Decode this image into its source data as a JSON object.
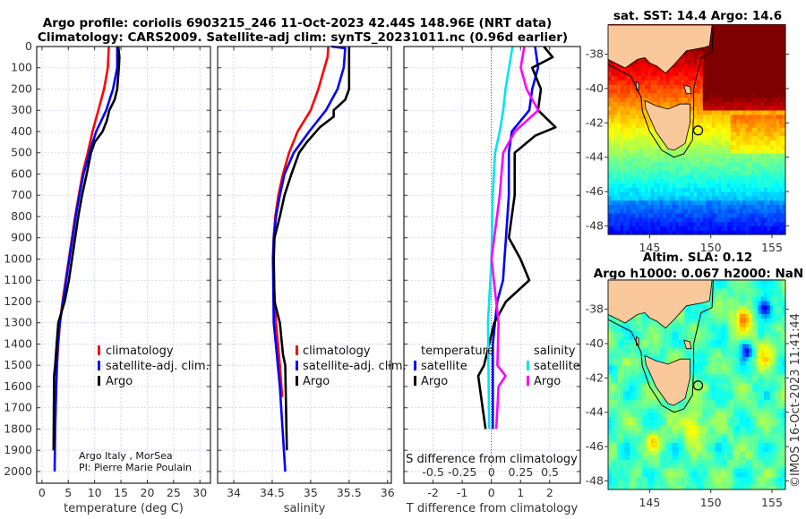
{
  "title_line1": "Argo profile: coriolis 6903215_246 11-Oct-2023 42.44S 148.96E (NRT data)",
  "title_line2": "Climatology: CARS2009. Satellite-adj clim: synTS_20231011.nc (0.96d earlier)",
  "credit": "©IMOS 16-Oct-2023 11:41:44",
  "colors": {
    "climatology": "#ff0000",
    "satellite": "#0000ff",
    "argo": "#000000",
    "s_satellite": "#00e5ee",
    "s_argo": "#ff00ff",
    "land": "#f9c99b"
  },
  "chart_data": [
    {
      "type": "line",
      "xlabel": "temperature (deg C)",
      "ylabel": "",
      "xlim": [
        -1,
        32
      ],
      "ylim": [
        0,
        2055
      ],
      "xticks": [
        0,
        5,
        10,
        15,
        20,
        25,
        30
      ],
      "yticks": [
        0,
        100,
        200,
        300,
        400,
        500,
        600,
        700,
        800,
        900,
        1000,
        1100,
        1200,
        1300,
        1400,
        1500,
        1600,
        1700,
        1800,
        1900,
        2000
      ],
      "grid": true,
      "legend": [
        "climatology",
        "satellite-adj. clim.",
        "Argo"
      ],
      "annotation": [
        "Argo Italy , MorSea",
        "PI: Pierre Marie Poulain"
      ],
      "series": [
        {
          "name": "climatology",
          "color": "#ff0000",
          "depth": [
            0,
            100,
            200,
            300,
            400,
            500,
            600,
            700,
            800,
            900,
            1000,
            1100,
            1200,
            1300,
            1400,
            1550
          ],
          "values": [
            12.7,
            12.5,
            11.8,
            10.7,
            9.6,
            8.7,
            7.7,
            7.0,
            6.3,
            5.7,
            5.1,
            4.5,
            3.9,
            3.4,
            3.1,
            2.7
          ]
        },
        {
          "name": "satellite-adj. clim.",
          "color": "#0000ff",
          "depth": [
            0,
            100,
            200,
            300,
            400,
            500,
            600,
            700,
            800,
            900,
            1000,
            1100,
            1200,
            1300,
            1400,
            1600,
            1800,
            2000
          ],
          "values": [
            14.3,
            14.3,
            13.5,
            12.2,
            10.3,
            9.0,
            7.9,
            7.1,
            6.4,
            5.8,
            5.2,
            4.6,
            4.0,
            3.4,
            3.0,
            2.7,
            2.5,
            2.4
          ]
        },
        {
          "name": "Argo",
          "color": "#000000",
          "depth": [
            0,
            50,
            100,
            200,
            250,
            300,
            350,
            400,
            450,
            500,
            600,
            700,
            800,
            900,
            1000,
            1100,
            1200,
            1300,
            1400,
            1500,
            1550,
            1900
          ],
          "values": [
            14.5,
            14.7,
            14.6,
            14.3,
            13.8,
            12.8,
            12.3,
            11.5,
            10.0,
            9.3,
            8.5,
            7.6,
            6.9,
            6.3,
            5.7,
            5.1,
            4.3,
            3.1,
            2.8,
            2.5,
            2.3,
            2.2
          ]
        }
      ]
    },
    {
      "type": "line",
      "xlabel": "salinity",
      "xlim": [
        33.79,
        36.05
      ],
      "ylim": [
        0,
        2055
      ],
      "xticks": [
        34,
        34.5,
        35,
        35.5,
        36
      ],
      "xticklabels": [
        "34",
        "34.5",
        "35",
        "35.5",
        "36"
      ],
      "grid": true,
      "legend": [
        "climatology",
        "satellite-adj. clim.",
        "Argo"
      ],
      "series": [
        {
          "name": "climatology",
          "color": "#ff0000",
          "depth": [
            0,
            50,
            100,
            200,
            300,
            400,
            500,
            600,
            700,
            800,
            900,
            1000,
            1100,
            1300,
            1500,
            1650
          ],
          "values": [
            35.23,
            35.22,
            35.18,
            35.1,
            35.0,
            34.83,
            34.72,
            34.64,
            34.58,
            34.54,
            34.52,
            34.51,
            34.52,
            34.55,
            34.6,
            34.63
          ]
        },
        {
          "name": "satellite-adj. clim.",
          "color": "#0000ff",
          "depth": [
            0,
            8,
            100,
            200,
            300,
            400,
            500,
            600,
            700,
            800,
            900,
            1000,
            1300,
            1600,
            2000
          ],
          "values": [
            35.27,
            35.45,
            35.43,
            35.35,
            35.2,
            34.98,
            34.78,
            34.66,
            34.6,
            34.55,
            34.52,
            34.51,
            34.52,
            34.6,
            34.67
          ]
        },
        {
          "name": "Argo",
          "color": "#000000",
          "depth": [
            0,
            100,
            200,
            250,
            300,
            330,
            380,
            450,
            500,
            600,
            700,
            800,
            900,
            1000,
            1200,
            1300,
            1450,
            1500,
            1900
          ],
          "values": [
            35.5,
            35.5,
            35.5,
            35.45,
            35.3,
            35.3,
            35.12,
            34.95,
            34.85,
            34.75,
            34.66,
            34.6,
            34.53,
            34.52,
            34.53,
            34.6,
            34.64,
            34.67,
            34.69
          ]
        }
      ]
    },
    {
      "type": "line",
      "xlabel": "T difference from climatology",
      "x2label": "S difference from climatology",
      "xlim": [
        -3.0,
        3.05
      ],
      "ylim": [
        0,
        2055
      ],
      "xticks": [
        -2,
        -1,
        0,
        1,
        2
      ],
      "x2lim": [
        -0.75,
        0.76
      ],
      "x2ticks": [
        -0.5,
        -0.25,
        0,
        0.25,
        0.5
      ],
      "x2ticklabels": [
        "-0.5",
        "-0.25",
        "0",
        "0.25",
        "0.5"
      ],
      "grid": true,
      "legend_t_title": "temperature",
      "legend_s_title": "salinity",
      "legend_t": [
        "satellite",
        "Argo"
      ],
      "legend_s": [
        "satellite",
        "Argo"
      ],
      "series": [
        {
          "name": "T satellite",
          "axis": "T",
          "color": "#0000ff",
          "depth": [
            0,
            100,
            200,
            300,
            400,
            500,
            700,
            900,
            1000,
            1100,
            1200,
            1400,
            1800
          ],
          "values": [
            1.5,
            1.6,
            1.4,
            1.3,
            0.7,
            0.6,
            0.6,
            0.5,
            0.45,
            0.4,
            0.2,
            0.05,
            0.05
          ]
        },
        {
          "name": "T Argo",
          "axis": "T",
          "color": "#000000",
          "depth": [
            0,
            50,
            100,
            200,
            300,
            380,
            420,
            500,
            700,
            900,
            1000,
            1100,
            1200,
            1300,
            1500,
            1550,
            1700,
            1800
          ],
          "values": [
            1.8,
            2.1,
            1.4,
            1.7,
            1.6,
            2.2,
            1.5,
            0.8,
            0.8,
            0.6,
            1.0,
            1.3,
            0.5,
            0.1,
            -0.25,
            -0.45,
            -0.3,
            -0.2
          ]
        },
        {
          "name": "S satellite",
          "axis": "S",
          "color": "#00e5ee",
          "depth": [
            0,
            100,
            200,
            300,
            400,
            500,
            700,
            1000,
            1300,
            1800
          ],
          "values": [
            0.18,
            0.15,
            0.12,
            0.1,
            0.07,
            0.03,
            0.01,
            0.0,
            -0.03,
            -0.02
          ]
        },
        {
          "name": "S Argo",
          "axis": "S",
          "color": "#ff00ff",
          "depth": [
            0,
            100,
            200,
            300,
            350,
            400,
            500,
            700,
            1000,
            1300,
            1500,
            1550,
            1600,
            1800
          ],
          "values": [
            0.28,
            0.25,
            0.3,
            0.4,
            0.3,
            0.2,
            0.1,
            0.07,
            0.0,
            0.06,
            0.05,
            0.12,
            0.06,
            0.04
          ]
        }
      ]
    },
    {
      "type": "heatmap",
      "title": "sat. SST: 14.4 Argo: 14.6",
      "field": "sst",
      "lonlim": [
        141.6,
        156.1
      ],
      "latlim": [
        -48.5,
        -36.3
      ],
      "xticks": [
        145,
        150,
        155
      ],
      "yticks": [
        -38,
        -40,
        -42,
        -44,
        -46,
        -48
      ],
      "marker": {
        "lon": 148.96,
        "lat": -42.44
      }
    },
    {
      "type": "heatmap",
      "title_line1": "Altim. SLA: 0.12",
      "title_line2": "Argo h1000: 0.067 h2000: NaN",
      "field": "sla",
      "lonlim": [
        141.6,
        156.1
      ],
      "latlim": [
        -48.5,
        -36.3
      ],
      "xticks": [
        145,
        150,
        155
      ],
      "yticks": [
        -38,
        -40,
        -42,
        -44,
        -46,
        -48
      ],
      "marker": {
        "lon": 148.96,
        "lat": -42.44
      }
    }
  ],
  "coast": {
    "mainland": [
      [
        141.6,
        -36.3
      ],
      [
        141.6,
        -38.3
      ],
      [
        143,
        -38.8
      ],
      [
        144,
        -38.3
      ],
      [
        144.6,
        -38.2
      ],
      [
        145,
        -38.5
      ],
      [
        145.6,
        -38.7
      ],
      [
        146.3,
        -39.1
      ],
      [
        147,
        -38.6
      ],
      [
        148,
        -37.8
      ],
      [
        149.5,
        -37.6
      ],
      [
        149.9,
        -37.5
      ],
      [
        150.1,
        -36.3
      ]
    ],
    "tasmania": [
      [
        144.6,
        -40.7
      ],
      [
        145.5,
        -41.0
      ],
      [
        146.5,
        -41.2
      ],
      [
        147.5,
        -40.9
      ],
      [
        148.3,
        -40.9
      ],
      [
        148.3,
        -42.0
      ],
      [
        147.9,
        -43.2
      ],
      [
        147.0,
        -43.6
      ],
      [
        146.5,
        -43.5
      ],
      [
        145.5,
        -42.5
      ],
      [
        145.2,
        -42.0
      ],
      [
        144.7,
        -41.2
      ]
    ],
    "flinders": [
      [
        147.8,
        -39.8
      ],
      [
        148.3,
        -39.9
      ],
      [
        148.4,
        -40.3
      ],
      [
        148.0,
        -40.3
      ]
    ],
    "king": [
      [
        143.9,
        -39.6
      ],
      [
        144.1,
        -39.7
      ],
      [
        144.1,
        -40.1
      ],
      [
        143.9,
        -40.1
      ]
    ]
  }
}
